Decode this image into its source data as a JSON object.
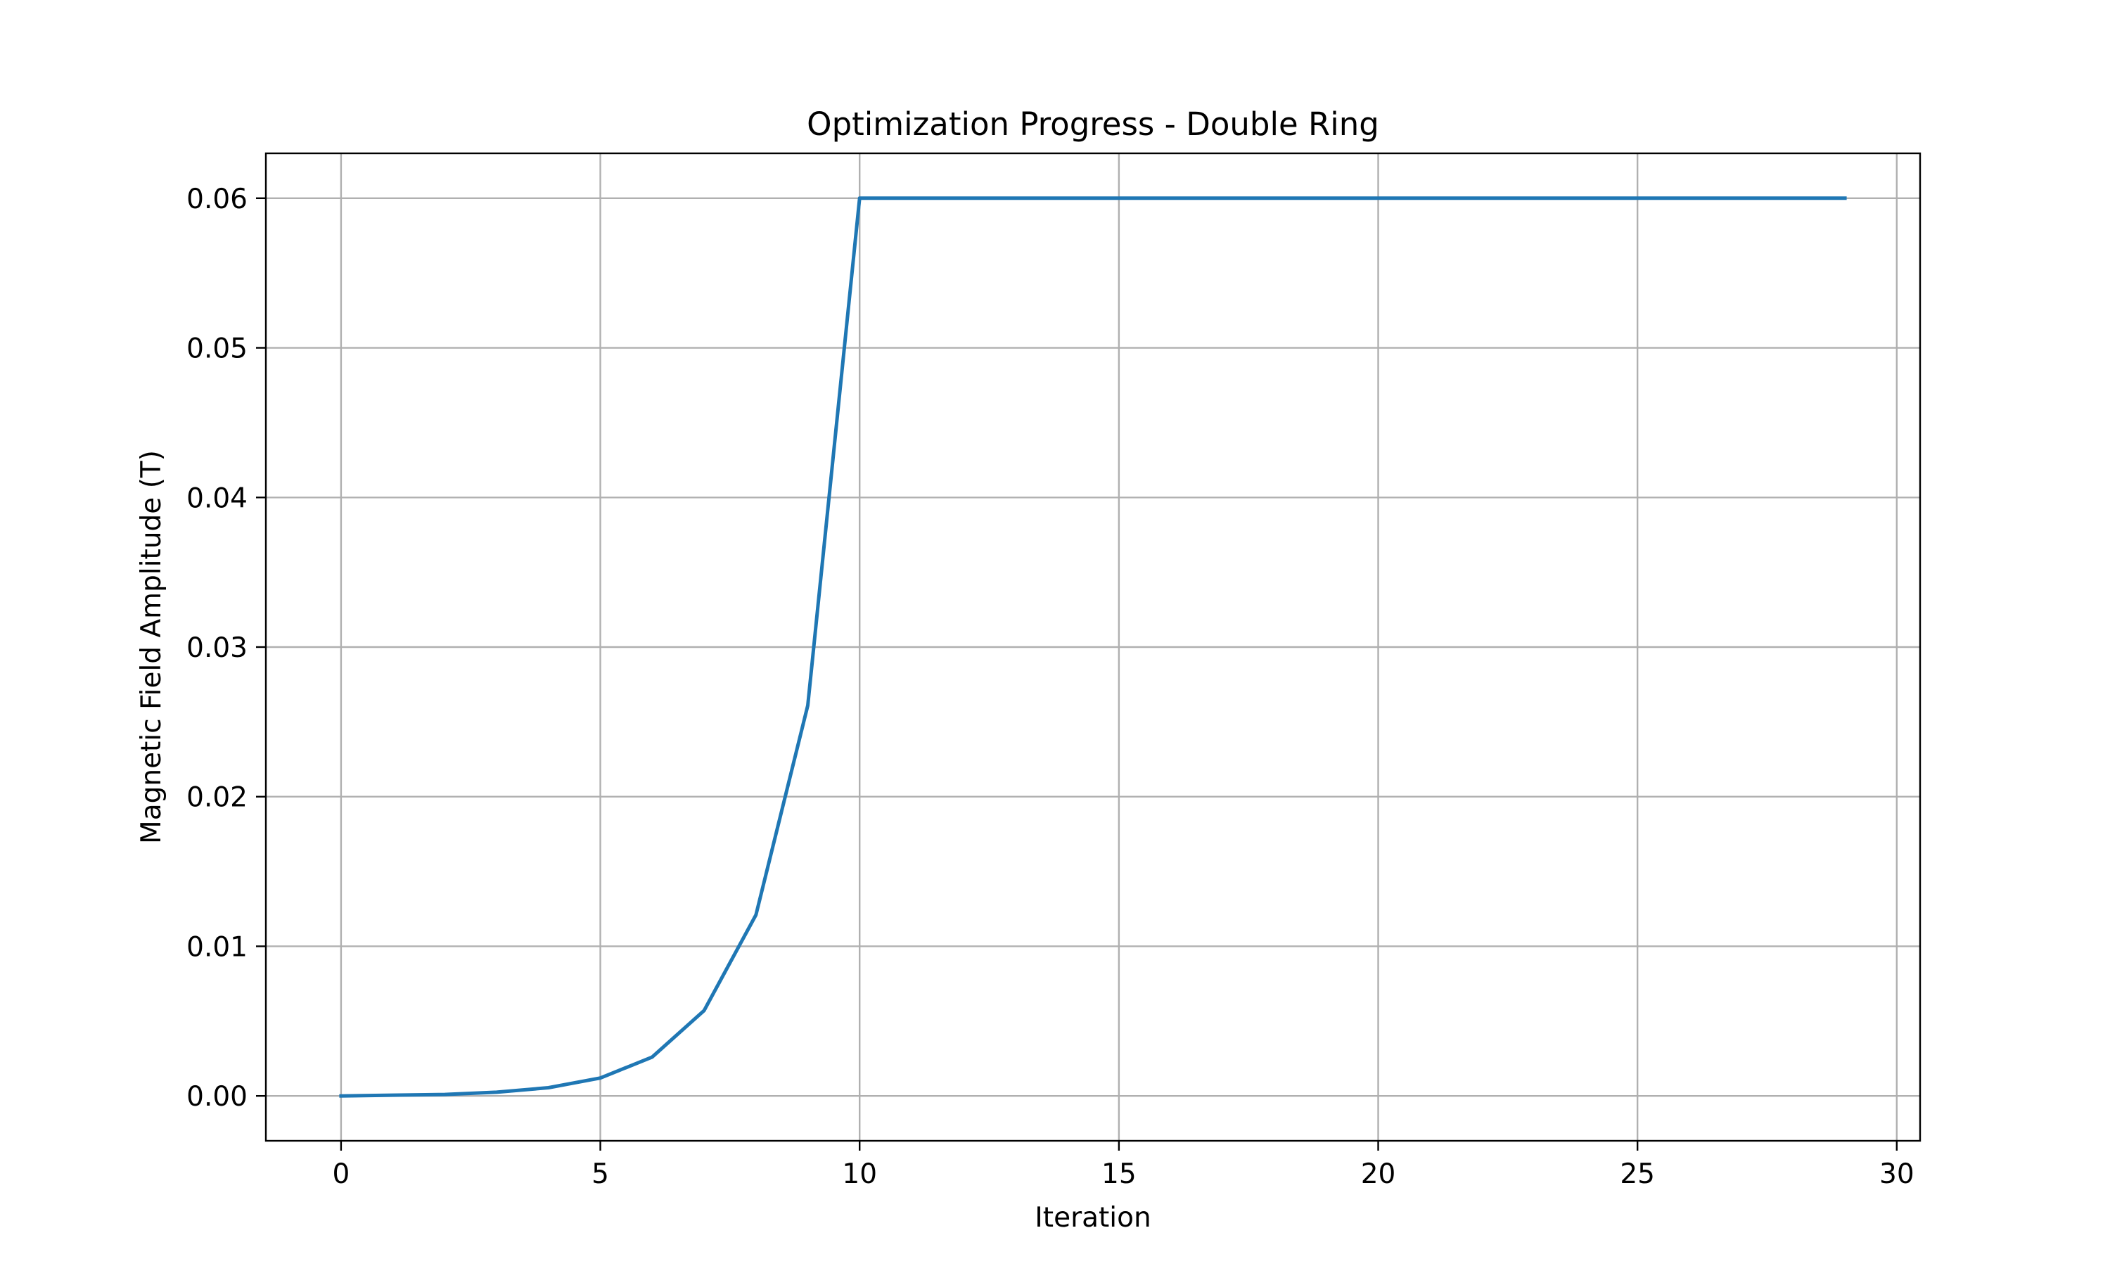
{
  "chart_data": {
    "type": "line",
    "title": "Optimization Progress - Double Ring",
    "xlabel": "Iteration",
    "ylabel": "Magnetic Field Amplitude (T)",
    "xlim": [
      -1.45,
      30.45
    ],
    "ylim": [
      -0.003,
      0.063
    ],
    "xticks": [
      0,
      5,
      10,
      15,
      20,
      25,
      30
    ],
    "xtick_labels": [
      "0",
      "5",
      "10",
      "15",
      "20",
      "25",
      "30"
    ],
    "yticks": [
      0.0,
      0.01,
      0.02,
      0.03,
      0.04,
      0.05,
      0.06
    ],
    "ytick_labels": [
      "0.00",
      "0.01",
      "0.02",
      "0.03",
      "0.04",
      "0.05",
      "0.06"
    ],
    "grid": true,
    "series": [
      {
        "color": "#1f77b4",
        "x": [
          0,
          1,
          2,
          3,
          4,
          5,
          6,
          7,
          8,
          9,
          10,
          11,
          12,
          13,
          14,
          15,
          16,
          17,
          18,
          19,
          20,
          21,
          22,
          23,
          24,
          25,
          26,
          27,
          28,
          29
        ],
        "y": [
          0.0,
          5e-05,
          0.0001,
          0.00025,
          0.00055,
          0.0012,
          0.0026,
          0.0057,
          0.0121,
          0.0261,
          0.06,
          0.06,
          0.06,
          0.06,
          0.06,
          0.06,
          0.06,
          0.06,
          0.06,
          0.06,
          0.06,
          0.06,
          0.06,
          0.06,
          0.06,
          0.06,
          0.06,
          0.06,
          0.06,
          0.06
        ]
      }
    ]
  }
}
